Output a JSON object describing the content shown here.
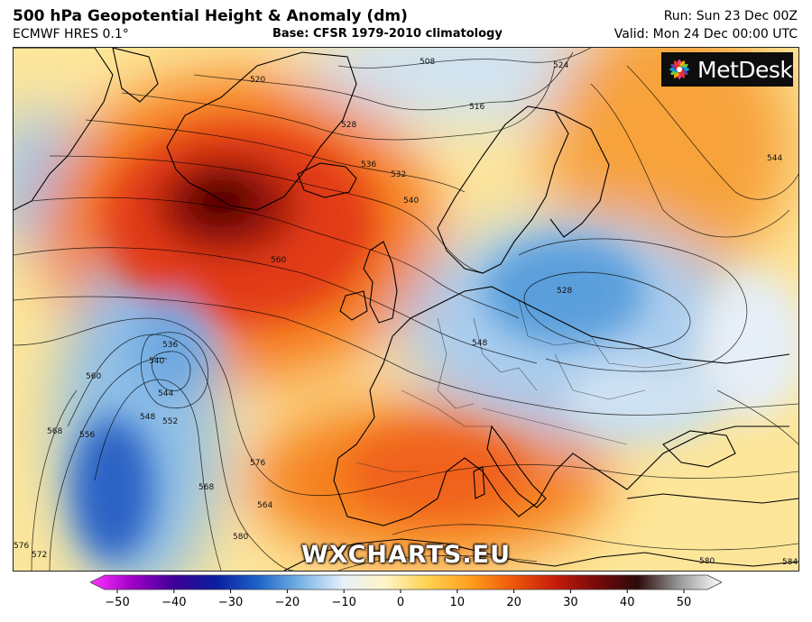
{
  "header": {
    "title": "500 hPa Geopotential Height & Anomaly (dm)",
    "model": "ECMWF HRES 0.1°",
    "base": "Base: CFSR 1979-2010 climatology",
    "run": "Run: Sun 23 Dec 00Z",
    "valid": "Valid: Mon 24 Dec 00:00 UTC"
  },
  "branding": {
    "logo": "MetDesk",
    "watermark": "WXCHARTS.EU"
  },
  "contour_labels": [
    {
      "label": "508"
    },
    {
      "label": "516"
    },
    {
      "label": "520"
    },
    {
      "label": "524"
    },
    {
      "label": "528"
    },
    {
      "label": "528"
    },
    {
      "label": "532"
    },
    {
      "label": "536"
    },
    {
      "label": "536"
    },
    {
      "label": "540"
    },
    {
      "label": "540"
    },
    {
      "label": "544"
    },
    {
      "label": "544"
    },
    {
      "label": "548"
    },
    {
      "label": "548"
    },
    {
      "label": "552"
    },
    {
      "label": "556"
    },
    {
      "label": "560"
    },
    {
      "label": "560"
    },
    {
      "label": "564"
    },
    {
      "label": "568"
    },
    {
      "label": "568"
    },
    {
      "label": "572"
    },
    {
      "label": "576"
    },
    {
      "label": "576"
    },
    {
      "label": "580"
    },
    {
      "label": "580"
    },
    {
      "label": "584"
    }
  ],
  "colorbar": {
    "ticks": [
      "−50",
      "−40",
      "−30",
      "−20",
      "−10",
      "0",
      "10",
      "20",
      "30",
      "40",
      "50"
    ],
    "colors": [
      "#ff33ff",
      "#a000c8",
      "#3c0096",
      "#0a1ea0",
      "#1e64c8",
      "#78b4e6",
      "#e6f0fa",
      "#fff5c8",
      "#ffd250",
      "#ffa01e",
      "#f05a0a",
      "#c81e0a",
      "#780a0a",
      "#2d0a0a",
      "#9a9a9a",
      "#ffffff"
    ],
    "range": [
      -50,
      50
    ]
  }
}
